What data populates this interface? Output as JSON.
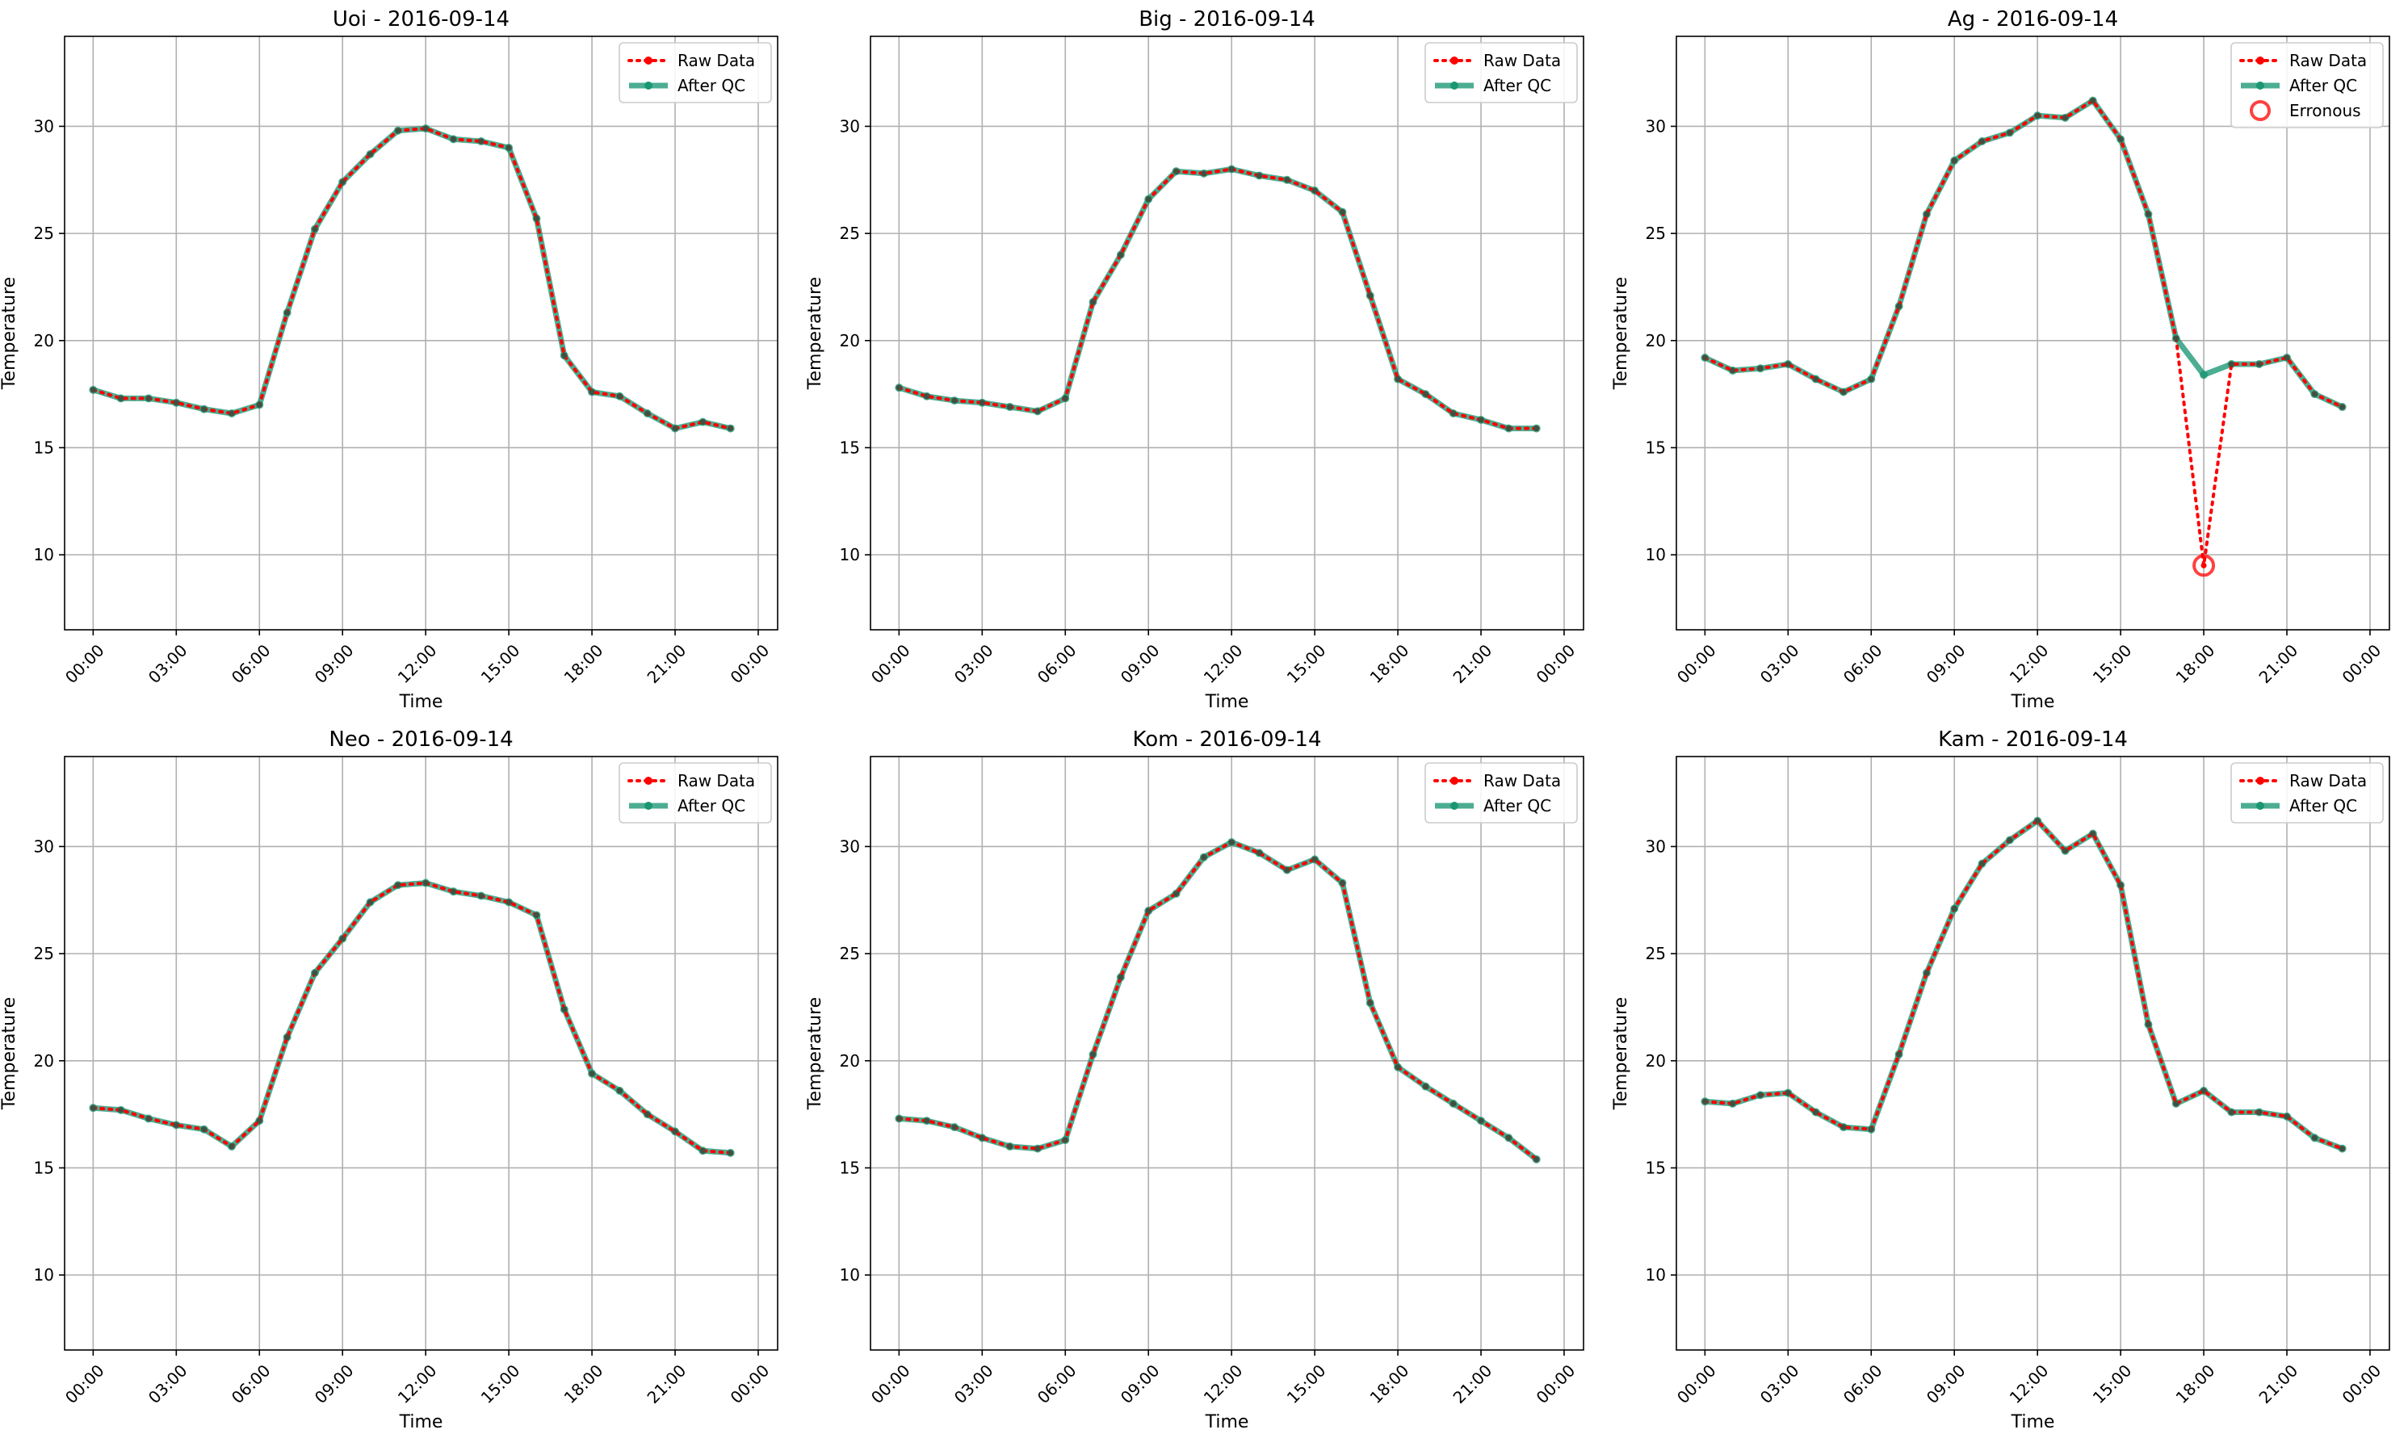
{
  "chart_data": [
    {
      "type": "line",
      "title": "Uoi - 2016-09-14",
      "xlabel": "Time",
      "ylabel": "Temperature",
      "xticks": [
        "00:00",
        "03:00",
        "06:00",
        "09:00",
        "12:00",
        "15:00",
        "18:00",
        "21:00",
        "00:00"
      ],
      "yticks": [
        10,
        15,
        20,
        25,
        30
      ],
      "ylim": [
        6.5,
        34.2
      ],
      "grid": true,
      "legend_position": "top-right",
      "x_hours": [
        0,
        1,
        2,
        3,
        4,
        5,
        6,
        7,
        8,
        9,
        10,
        11,
        12,
        13,
        14,
        15,
        16,
        17,
        18,
        19,
        20,
        21,
        22,
        23
      ],
      "series": [
        {
          "name": "Raw Data",
          "color": "#ff0000",
          "style": "dotted",
          "values": [
            17.7,
            17.3,
            17.3,
            17.1,
            16.8,
            16.6,
            17.0,
            21.3,
            25.2,
            27.4,
            28.7,
            29.8,
            29.9,
            29.4,
            29.3,
            29.0,
            25.7,
            19.3,
            17.6,
            17.4,
            16.6,
            15.9,
            16.2,
            15.9
          ]
        },
        {
          "name": "After QC",
          "color": "#1a9673",
          "style": "solid",
          "values": [
            17.7,
            17.3,
            17.3,
            17.1,
            16.8,
            16.6,
            17.0,
            21.3,
            25.2,
            27.4,
            28.7,
            29.8,
            29.9,
            29.4,
            29.3,
            29.0,
            25.7,
            19.3,
            17.6,
            17.4,
            16.6,
            15.9,
            16.2,
            15.9
          ]
        }
      ],
      "erroneous": []
    },
    {
      "type": "line",
      "title": "Big - 2016-09-14",
      "xlabel": "Time",
      "ylabel": "Temperature",
      "xticks": [
        "00:00",
        "03:00",
        "06:00",
        "09:00",
        "12:00",
        "15:00",
        "18:00",
        "21:00",
        "00:00"
      ],
      "yticks": [
        10,
        15,
        20,
        25,
        30
      ],
      "ylim": [
        6.5,
        34.2
      ],
      "grid": true,
      "legend_position": "top-right",
      "x_hours": [
        0,
        1,
        2,
        3,
        4,
        5,
        6,
        7,
        8,
        9,
        10,
        11,
        12,
        13,
        14,
        15,
        16,
        17,
        18,
        19,
        20,
        21,
        22,
        23
      ],
      "series": [
        {
          "name": "Raw Data",
          "color": "#ff0000",
          "style": "dotted",
          "values": [
            17.8,
            17.4,
            17.2,
            17.1,
            16.9,
            16.7,
            17.3,
            21.8,
            24.0,
            26.6,
            27.9,
            27.8,
            28.0,
            27.7,
            27.5,
            27.0,
            26.0,
            22.1,
            18.2,
            17.5,
            16.6,
            16.3,
            15.9,
            15.9
          ]
        },
        {
          "name": "After QC",
          "color": "#1a9673",
          "style": "solid",
          "values": [
            17.8,
            17.4,
            17.2,
            17.1,
            16.9,
            16.7,
            17.3,
            21.8,
            24.0,
            26.6,
            27.9,
            27.8,
            28.0,
            27.7,
            27.5,
            27.0,
            26.0,
            22.1,
            18.2,
            17.5,
            16.6,
            16.3,
            15.9,
            15.9
          ]
        }
      ],
      "erroneous": []
    },
    {
      "type": "line",
      "title": "Ag - 2016-09-14",
      "xlabel": "Time",
      "ylabel": "Temperature",
      "xticks": [
        "00:00",
        "03:00",
        "06:00",
        "09:00",
        "12:00",
        "15:00",
        "18:00",
        "21:00",
        "00:00"
      ],
      "yticks": [
        10,
        15,
        20,
        25,
        30
      ],
      "ylim": [
        6.5,
        34.2
      ],
      "grid": true,
      "legend_position": "top-right",
      "x_hours": [
        0,
        1,
        2,
        3,
        4,
        5,
        6,
        7,
        8,
        9,
        10,
        11,
        12,
        13,
        14,
        15,
        16,
        17,
        18,
        19,
        20,
        21,
        22,
        23
      ],
      "series": [
        {
          "name": "Raw Data",
          "color": "#ff0000",
          "style": "dotted",
          "values": [
            19.2,
            18.6,
            18.7,
            18.9,
            18.2,
            17.6,
            18.2,
            21.6,
            25.9,
            28.4,
            29.3,
            29.7,
            30.5,
            30.4,
            31.2,
            29.4,
            25.9,
            20.1,
            9.5,
            18.9,
            18.9,
            19.2,
            17.5,
            16.9
          ]
        },
        {
          "name": "After QC",
          "color": "#1a9673",
          "style": "solid",
          "values": [
            19.2,
            18.6,
            18.7,
            18.9,
            18.2,
            17.6,
            18.2,
            21.6,
            25.9,
            28.4,
            29.3,
            29.7,
            30.5,
            30.4,
            31.2,
            29.4,
            25.9,
            20.1,
            18.4,
            18.9,
            18.9,
            19.2,
            17.5,
            16.9
          ]
        }
      ],
      "erroneous_label": "Erronous",
      "erroneous": [
        {
          "x_hour": 18,
          "y": 9.5
        }
      ]
    },
    {
      "type": "line",
      "title": "Neo - 2016-09-14",
      "xlabel": "Time",
      "ylabel": "Temperature",
      "xticks": [
        "00:00",
        "03:00",
        "06:00",
        "09:00",
        "12:00",
        "15:00",
        "18:00",
        "21:00",
        "00:00"
      ],
      "yticks": [
        10,
        15,
        20,
        25,
        30
      ],
      "ylim": [
        6.5,
        34.2
      ],
      "grid": true,
      "legend_position": "top-right",
      "x_hours": [
        0,
        1,
        2,
        3,
        4,
        5,
        6,
        7,
        8,
        9,
        10,
        11,
        12,
        13,
        14,
        15,
        16,
        17,
        18,
        19,
        20,
        21,
        22,
        23
      ],
      "series": [
        {
          "name": "Raw Data",
          "color": "#ff0000",
          "style": "dotted",
          "values": [
            17.8,
            17.7,
            17.3,
            17.0,
            16.8,
            16.0,
            17.2,
            21.1,
            24.1,
            25.7,
            27.4,
            28.2,
            28.3,
            27.9,
            27.7,
            27.4,
            26.8,
            22.4,
            19.4,
            18.6,
            17.5,
            16.7,
            15.8,
            15.7
          ]
        },
        {
          "name": "After QC",
          "color": "#1a9673",
          "style": "solid",
          "values": [
            17.8,
            17.7,
            17.3,
            17.0,
            16.8,
            16.0,
            17.2,
            21.1,
            24.1,
            25.7,
            27.4,
            28.2,
            28.3,
            27.9,
            27.7,
            27.4,
            26.8,
            22.4,
            19.4,
            18.6,
            17.5,
            16.7,
            15.8,
            15.7
          ]
        }
      ],
      "erroneous": []
    },
    {
      "type": "line",
      "title": "Kom - 2016-09-14",
      "xlabel": "Time",
      "ylabel": "Temperature",
      "xticks": [
        "00:00",
        "03:00",
        "06:00",
        "09:00",
        "12:00",
        "15:00",
        "18:00",
        "21:00",
        "00:00"
      ],
      "yticks": [
        10,
        15,
        20,
        25,
        30
      ],
      "ylim": [
        6.5,
        34.2
      ],
      "grid": true,
      "legend_position": "top-right",
      "x_hours": [
        0,
        1,
        2,
        3,
        4,
        5,
        6,
        7,
        8,
        9,
        10,
        11,
        12,
        13,
        14,
        15,
        16,
        17,
        18,
        19,
        20,
        21,
        22,
        23
      ],
      "series": [
        {
          "name": "Raw Data",
          "color": "#ff0000",
          "style": "dotted",
          "values": [
            17.3,
            17.2,
            16.9,
            16.4,
            16.0,
            15.9,
            16.3,
            20.3,
            23.9,
            27.0,
            27.8,
            29.5,
            30.2,
            29.7,
            28.9,
            29.4,
            28.3,
            22.7,
            19.7,
            18.8,
            18.0,
            17.2,
            16.4,
            15.4
          ]
        },
        {
          "name": "After QC",
          "color": "#1a9673",
          "style": "solid",
          "values": [
            17.3,
            17.2,
            16.9,
            16.4,
            16.0,
            15.9,
            16.3,
            20.3,
            23.9,
            27.0,
            27.8,
            29.5,
            30.2,
            29.7,
            28.9,
            29.4,
            28.3,
            22.7,
            19.7,
            18.8,
            18.0,
            17.2,
            16.4,
            15.4
          ]
        }
      ],
      "erroneous": []
    },
    {
      "type": "line",
      "title": "Kam - 2016-09-14",
      "xlabel": "Time",
      "ylabel": "Temperature",
      "xticks": [
        "00:00",
        "03:00",
        "06:00",
        "09:00",
        "12:00",
        "15:00",
        "18:00",
        "21:00",
        "00:00"
      ],
      "yticks": [
        10,
        15,
        20,
        25,
        30
      ],
      "ylim": [
        6.5,
        34.2
      ],
      "grid": true,
      "legend_position": "top-right",
      "x_hours": [
        0,
        1,
        2,
        3,
        4,
        5,
        6,
        7,
        8,
        9,
        10,
        11,
        12,
        13,
        14,
        15,
        16,
        17,
        18,
        19,
        20,
        21,
        22,
        23
      ],
      "series": [
        {
          "name": "Raw Data",
          "color": "#ff0000",
          "style": "dotted",
          "values": [
            18.1,
            18.0,
            18.4,
            18.5,
            17.6,
            16.9,
            16.8,
            20.3,
            24.1,
            27.1,
            29.2,
            30.3,
            31.2,
            29.8,
            30.6,
            28.2,
            21.7,
            18.0,
            18.6,
            17.6,
            17.6,
            17.4,
            16.4,
            15.9
          ]
        },
        {
          "name": "After QC",
          "color": "#1a9673",
          "style": "solid",
          "values": [
            18.1,
            18.0,
            18.4,
            18.5,
            17.6,
            16.9,
            16.8,
            20.3,
            24.1,
            27.1,
            29.2,
            30.3,
            31.2,
            29.8,
            30.6,
            28.2,
            21.7,
            18.0,
            18.6,
            17.6,
            17.6,
            17.4,
            16.4,
            15.9
          ]
        }
      ],
      "erroneous": []
    }
  ]
}
